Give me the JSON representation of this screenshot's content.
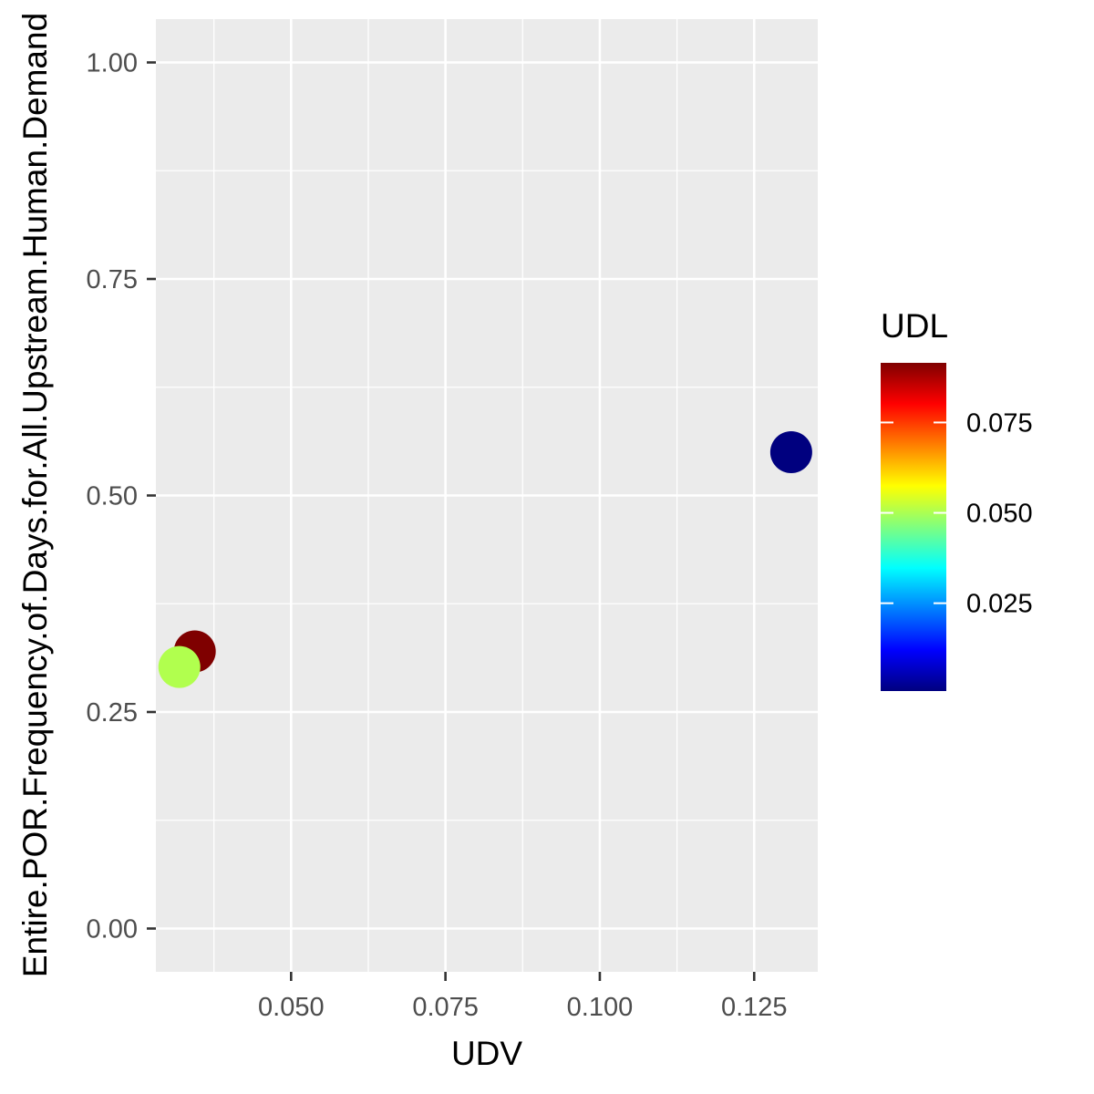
{
  "chart_data": {
    "type": "scatter",
    "title": "",
    "xlabel": "UDV",
    "ylabel": "Entire.POR.Frequency.of.Days.for.All.Upstream.Human.Demand",
    "xlim": [
      0.0281,
      0.1353
    ],
    "ylim": [
      -0.05,
      1.05
    ],
    "x_ticks": [
      0.05,
      0.075,
      0.1,
      0.125
    ],
    "x_tick_labels": [
      "0.050",
      "0.075",
      "0.100",
      "0.125"
    ],
    "y_ticks": [
      0.0,
      0.25,
      0.5,
      0.75,
      1.0
    ],
    "y_tick_labels": [
      "0.00",
      "0.25",
      "0.50",
      "0.75",
      "1.00"
    ],
    "grid": true,
    "points": [
      {
        "x": 0.0344,
        "y": 0.32,
        "udl": 0.0915
      },
      {
        "x": 0.0319,
        "y": 0.302,
        "udl": 0.0505
      },
      {
        "x": 0.131,
        "y": 0.55,
        "udl": 0.0007
      }
    ],
    "color_scale": {
      "name": "UDL",
      "range": [
        0.0007,
        0.0915
      ],
      "ticks": [
        0.025,
        0.05,
        0.075
      ],
      "tick_labels": [
        "0.025",
        "0.050",
        "0.075"
      ],
      "colors": [
        "#00007F",
        "#0000FF",
        "#007FFF",
        "#00FFFF",
        "#7FFF7F",
        "#FFFF00",
        "#FF7F00",
        "#FF0000",
        "#7F0000"
      ]
    },
    "legend_position": "right",
    "panel_background": "#EBEBEB",
    "grid_color": "#FFFFFF"
  }
}
